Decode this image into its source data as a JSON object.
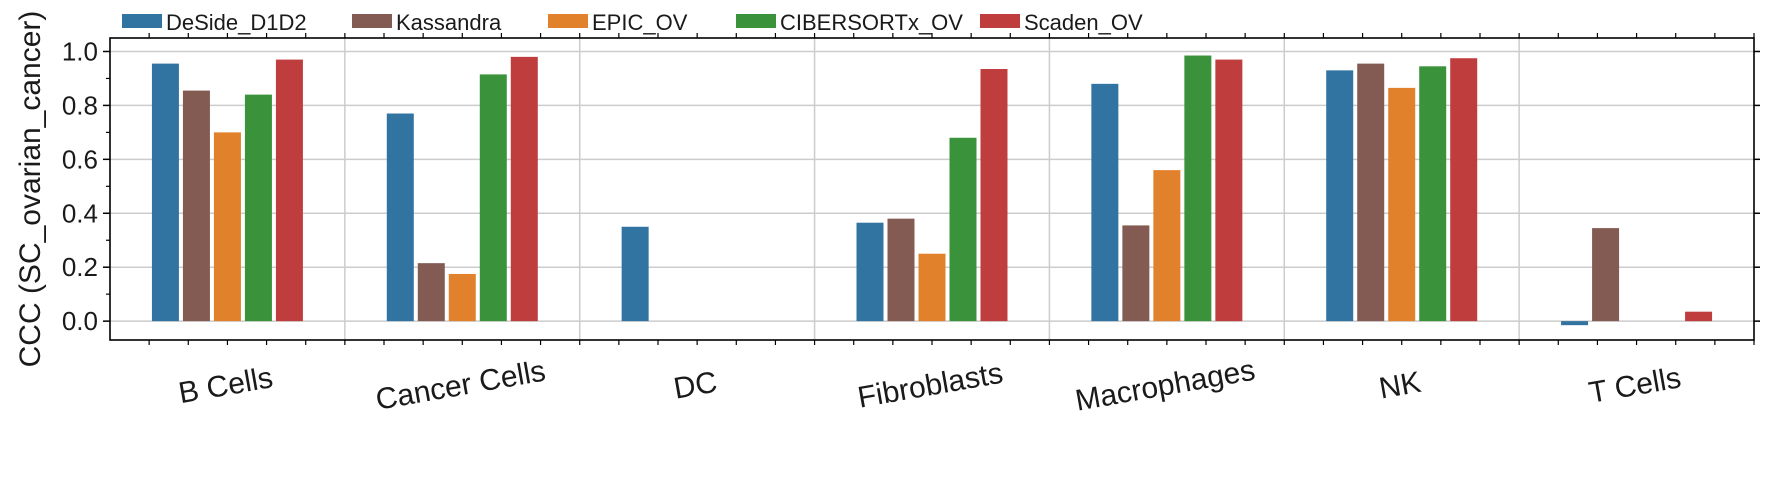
{
  "chart_data": {
    "type": "bar",
    "title": "",
    "xlabel": "",
    "ylabel": "CCC (SC_ovarian_cancer)",
    "ylim": [
      -0.07,
      1.05
    ],
    "yticks": [
      0.0,
      0.2,
      0.4,
      0.6,
      0.8,
      1.0
    ],
    "ytick_labels": [
      "0.0",
      "0.2",
      "0.4",
      "0.6",
      "0.8",
      "1.0"
    ],
    "grid": true,
    "legend_position": "top",
    "categories": [
      "B Cells",
      "Cancer Cells",
      "DC",
      "Fibroblasts",
      "Macrophages",
      "NK",
      "T Cells"
    ],
    "series": [
      {
        "name": "DeSide_D1D2",
        "color": "#3274a1",
        "values": [
          0.955,
          0.77,
          0.35,
          0.365,
          0.88,
          0.93,
          -0.015
        ]
      },
      {
        "name": "Kassandra",
        "color": "#845b53",
        "values": [
          0.855,
          0.215,
          0.0,
          0.38,
          0.355,
          0.955,
          0.345
        ]
      },
      {
        "name": "EPIC_OV",
        "color": "#e1812c",
        "values": [
          0.7,
          0.175,
          0.0,
          0.25,
          0.56,
          0.865,
          0.0
        ]
      },
      {
        "name": "CIBERSORTx_OV",
        "color": "#3a923a",
        "values": [
          0.84,
          0.915,
          0.0,
          0.68,
          0.985,
          0.945,
          0.0
        ]
      },
      {
        "name": "Scaden_OV",
        "color": "#c03d3e",
        "values": [
          0.97,
          0.98,
          0.0,
          0.935,
          0.97,
          0.975,
          0.035
        ]
      }
    ]
  }
}
